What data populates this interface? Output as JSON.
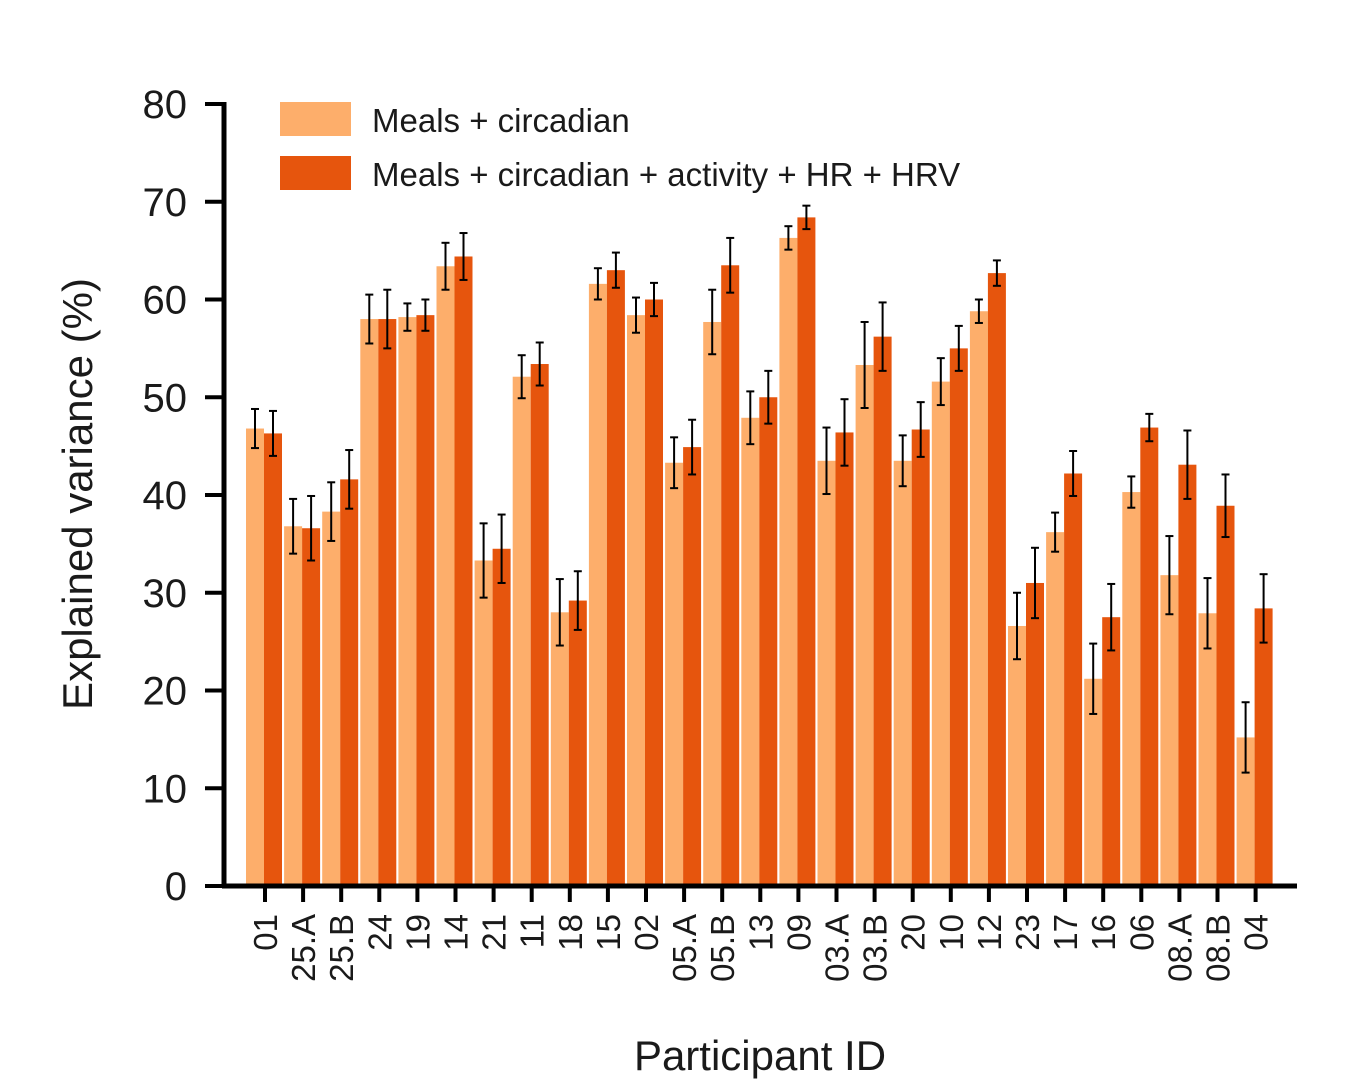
{
  "chart_data": {
    "type": "bar",
    "title": "",
    "xlabel": "Participant ID",
    "ylabel": "Explained variance (%)",
    "ylim": [
      0,
      80
    ],
    "yticks": [
      "0",
      "10",
      "20",
      "30",
      "40",
      "50",
      "60",
      "70",
      "80"
    ],
    "categories": [
      "01",
      "25.A",
      "25.B",
      "24",
      "19",
      "14",
      "21",
      "11",
      "18",
      "15",
      "02",
      "05.A",
      "05.B",
      "13",
      "09",
      "03.A",
      "03.B",
      "20",
      "10",
      "12",
      "23",
      "17",
      "16",
      "06",
      "08.A",
      "08.B",
      "04"
    ],
    "legend_position": "top-left",
    "grid": false,
    "series": [
      {
        "name": "Meals + circadian",
        "color": "#fdae6b",
        "values": [
          46.8,
          36.8,
          38.3,
          58.0,
          58.2,
          63.4,
          33.3,
          52.1,
          28.0,
          61.6,
          58.4,
          43.3,
          57.7,
          47.9,
          66.3,
          43.5,
          53.3,
          43.5,
          51.6,
          58.8,
          26.6,
          36.2,
          21.2,
          40.3,
          31.8,
          27.9,
          15.2
        ],
        "errors": [
          2.0,
          2.8,
          3.0,
          2.5,
          1.4,
          2.4,
          3.8,
          2.2,
          3.4,
          1.6,
          1.8,
          2.6,
          3.3,
          2.7,
          1.2,
          3.4,
          4.4,
          2.6,
          2.4,
          1.2,
          3.4,
          2.0,
          3.6,
          1.6,
          4.0,
          3.6,
          3.6
        ]
      },
      {
        "name": "Meals + circadian + activity + HR + HRV",
        "color": "#e6550d",
        "values": [
          46.3,
          36.6,
          41.6,
          58.0,
          58.4,
          64.4,
          34.5,
          53.4,
          29.2,
          63.0,
          60.0,
          44.9,
          63.5,
          50.0,
          68.4,
          46.4,
          56.2,
          46.7,
          55.0,
          62.7,
          31.0,
          42.2,
          27.5,
          46.9,
          43.1,
          38.9,
          28.4
        ],
        "errors": [
          2.3,
          3.3,
          3.0,
          3.0,
          1.6,
          2.4,
          3.5,
          2.2,
          3.0,
          1.8,
          1.7,
          2.8,
          2.8,
          2.7,
          1.2,
          3.4,
          3.5,
          2.8,
          2.3,
          1.3,
          3.6,
          2.3,
          3.4,
          1.4,
          3.5,
          3.2,
          3.5
        ]
      }
    ]
  }
}
